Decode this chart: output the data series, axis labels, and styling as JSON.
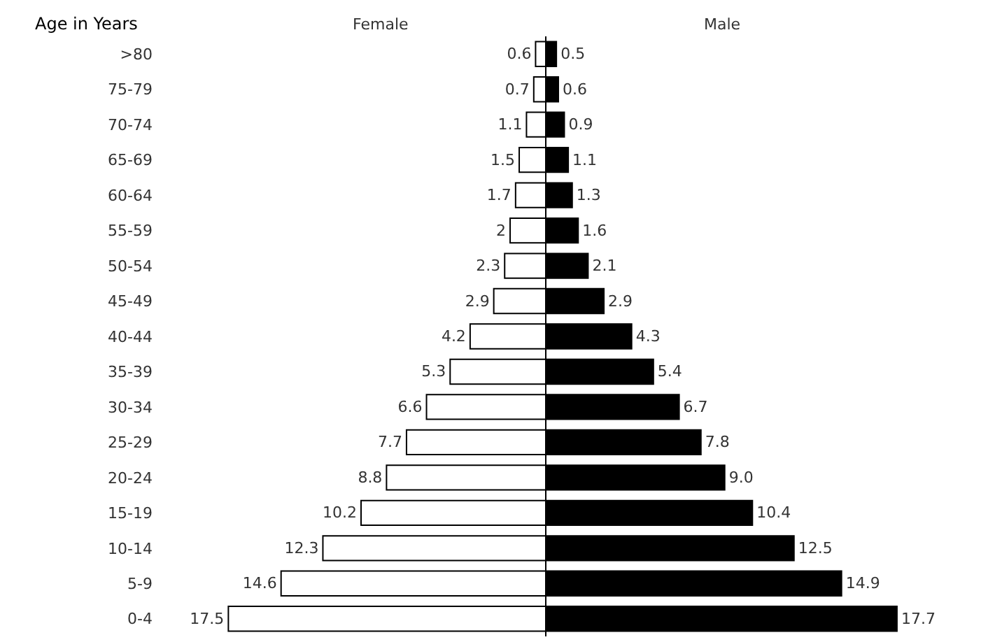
{
  "chart_data": [
    {
      "type": "bar",
      "orientation": "horizontal",
      "title": "Female",
      "ylabel": "Age in Years",
      "categories": [
        ">80",
        "75-79",
        "70-74",
        "65-69",
        "60-64",
        "55-59",
        "50-54",
        "45-49",
        "40-44",
        "35-39",
        "30-34",
        "25-29",
        "20-24",
        "15-19",
        "10-14",
        "5-9",
        "0-4"
      ],
      "series": [
        {
          "color": "#ffffff",
          "values": [
            0.6,
            0.7,
            1.1,
            1.5,
            1.7,
            2,
            2.3,
            2.9,
            4.2,
            5.3,
            6.6,
            7.7,
            8.8,
            10.2,
            12.3,
            14.6,
            17.5
          ],
          "value_labels": [
            "0.6",
            "0.7",
            "1.1",
            "1.5",
            "1.7",
            "2",
            "2.3",
            "2.9",
            "4.2",
            "5.3",
            "6.6",
            "7.7",
            "8.8",
            "10.2",
            "12.3",
            "14.6",
            "17.5"
          ]
        }
      ],
      "tick_labels": "y"
    },
    {
      "type": "bar",
      "orientation": "horizontal",
      "title": "Male",
      "categories": [
        null,
        null,
        null,
        null,
        null,
        null,
        null,
        null,
        null,
        null,
        null,
        null,
        null,
        null,
        null,
        null,
        null
      ],
      "series": [
        {
          "color": "#000000",
          "values": [
            0.5,
            0.6,
            0.9,
            1.1,
            1.3,
            1.6,
            2.1,
            2.9,
            4.3,
            5.4,
            6.7,
            7.8,
            9.0,
            10.4,
            12.5,
            14.9,
            17.7
          ],
          "value_labels": [
            "0.5",
            "0.6",
            "0.9",
            "1.1",
            "1.3",
            "1.6",
            "2.1",
            "2.9",
            "4.3",
            "5.4",
            "6.7",
            "7.8",
            "9.0",
            "10.4",
            "12.5",
            "14.9",
            "17.7"
          ]
        }
      ],
      "tick_labels": false
    }
  ]
}
